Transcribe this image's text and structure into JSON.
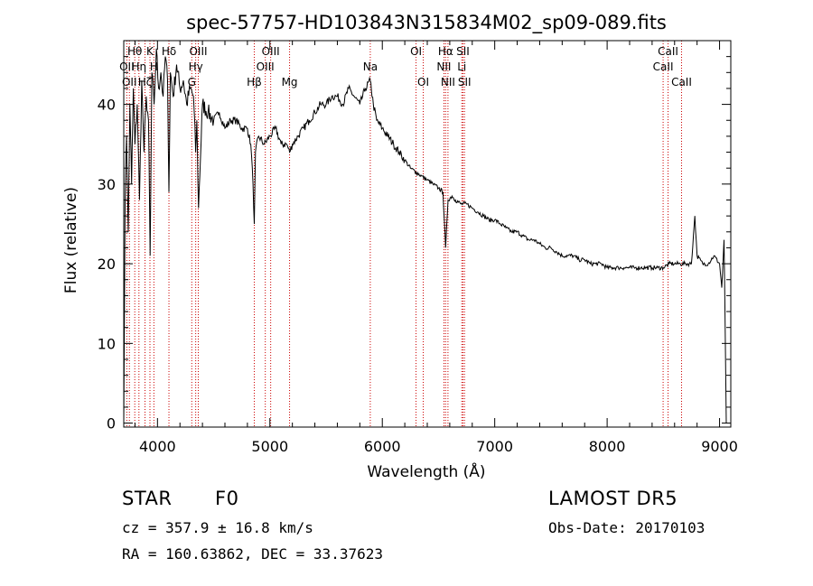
{
  "chart_data": {
    "type": "line",
    "title": "spec-57757-HD103843N315834M02_sp09-089.fits",
    "xlabel": "Wavelength (Å)",
    "ylabel": "Flux (relative)",
    "xlim": [
      3700,
      9100
    ],
    "ylim": [
      -0.5,
      48
    ],
    "x_ticks": [
      4000,
      5000,
      6000,
      7000,
      8000,
      9000
    ],
    "y_ticks": [
      0,
      10,
      20,
      30,
      40
    ],
    "grid": false,
    "series": [
      {
        "color": "#000000",
        "x": [
          3700,
          3712,
          3725,
          3740,
          3755,
          3770,
          3785,
          3800,
          3820,
          3840,
          3860,
          3880,
          3900,
          3920,
          3935,
          3950,
          3970,
          3990,
          4010,
          4030,
          4050,
          4070,
          4090,
          4102,
          4115,
          4140,
          4170,
          4200,
          4230,
          4260,
          4290,
          4320,
          4340,
          4350,
          4365,
          4400,
          4450,
          4500,
          4550,
          4600,
          4650,
          4700,
          4750,
          4800,
          4830,
          4850,
          4861,
          4872,
          4900,
          4950,
          5000,
          5050,
          5100,
          5150,
          5175,
          5200,
          5250,
          5300,
          5350,
          5400,
          5450,
          5500,
          5550,
          5600,
          5650,
          5700,
          5750,
          5800,
          5850,
          5893,
          5920,
          5950,
          6000,
          6050,
          6100,
          6150,
          6200,
          6250,
          6300,
          6350,
          6400,
          6450,
          6500,
          6540,
          6563,
          6585,
          6620,
          6650,
          6700,
          6750,
          6800,
          6850,
          6900,
          6950,
          7000,
          7050,
          7100,
          7150,
          7200,
          7250,
          7300,
          7350,
          7400,
          7450,
          7500,
          7550,
          7600,
          7650,
          7700,
          7750,
          7800,
          7850,
          7900,
          7950,
          8000,
          8050,
          8100,
          8150,
          8200,
          8250,
          8300,
          8350,
          8400,
          8450,
          8500,
          8550,
          8600,
          8650,
          8700,
          8750,
          8780,
          8800,
          8850,
          8900,
          8950,
          9000,
          9020,
          9040,
          9060
        ],
        "y": [
          0,
          28,
          36,
          24,
          40,
          30,
          42,
          35,
          40,
          28,
          43,
          34,
          41,
          38,
          21,
          44,
          40,
          47,
          42,
          44,
          41,
          46,
          43,
          29,
          44,
          41,
          45,
          42,
          43,
          40,
          42,
          41,
          34,
          38,
          27,
          40,
          39,
          38,
          39,
          37,
          38,
          38,
          37,
          37,
          35,
          30,
          25,
          34,
          36,
          35,
          36,
          37,
          35,
          35,
          34,
          35,
          36,
          37,
          38,
          39,
          40,
          40,
          41,
          41,
          40,
          42,
          41,
          40,
          42,
          43,
          40,
          38,
          37,
          36,
          35,
          34,
          33,
          32,
          31.5,
          31,
          30.5,
          30,
          29.5,
          29,
          22,
          28,
          28.5,
          28,
          27.5,
          27.5,
          27,
          26.5,
          26,
          25.5,
          25.5,
          25,
          24.5,
          24,
          24,
          23.5,
          23,
          23,
          22.5,
          22,
          22,
          21.5,
          21,
          21,
          21,
          20.5,
          20.5,
          20,
          20,
          20,
          19.5,
          19.5,
          19.5,
          19.5,
          19.5,
          19.5,
          19.5,
          19.5,
          19.5,
          19.5,
          19.5,
          20,
          20,
          20,
          20,
          20,
          26,
          21,
          20,
          20,
          21,
          20,
          17,
          23,
          0
        ]
      }
    ],
    "lines": [
      {
        "x": 3727,
        "label": "OII",
        "row": 1
      },
      {
        "x": 3750,
        "label": "OII",
        "row": 2
      },
      {
        "x": 3798,
        "label": "Hθ",
        "row": 0
      },
      {
        "x": 3835,
        "label": "Hη",
        "row": 1
      },
      {
        "x": 3889,
        "label": "Hζ",
        "row": 2
      },
      {
        "x": 3933,
        "label": "K",
        "row": 0
      },
      {
        "x": 3968,
        "label": "H",
        "row": 1
      },
      {
        "x": 4102,
        "label": "Hδ",
        "row": 0
      },
      {
        "x": 4305,
        "label": "G",
        "row": 2
      },
      {
        "x": 4340,
        "label": "Hγ",
        "row": 1
      },
      {
        "x": 4363,
        "label": "OIII",
        "row": 0
      },
      {
        "x": 4861,
        "label": "Hβ",
        "row": 2
      },
      {
        "x": 4959,
        "label": "OIII",
        "row": 1
      },
      {
        "x": 5007,
        "label": "OIII",
        "row": 0
      },
      {
        "x": 5175,
        "label": "Mg",
        "row": 2
      },
      {
        "x": 5893,
        "label": "Na",
        "row": 1
      },
      {
        "x": 6300,
        "label": "OI",
        "row": 0
      },
      {
        "x": 6364,
        "label": "OI",
        "row": 2
      },
      {
        "x": 6548,
        "label": "NII",
        "row": 1
      },
      {
        "x": 6563,
        "label": "Hα",
        "row": 0
      },
      {
        "x": 6584,
        "label": "NII",
        "row": 2
      },
      {
        "x": 6707,
        "label": "Li",
        "row": 1
      },
      {
        "x": 6717,
        "label": "SII",
        "row": 0
      },
      {
        "x": 6731,
        "label": "SII",
        "row": 2
      },
      {
        "x": 8498,
        "label": "CaII",
        "row": 1
      },
      {
        "x": 8542,
        "label": "CaII",
        "row": 0
      },
      {
        "x": 8662,
        "label": "CaII",
        "row": 2
      }
    ]
  },
  "info": {
    "class_label": "STAR",
    "subclass": "F0",
    "survey": "LAMOST DR5",
    "cz": "cz = 357.9 ± 16.8 km/s",
    "obs_date": "Obs-Date: 20170103",
    "radec": "RA = 160.63862, DEC =  33.37623"
  }
}
